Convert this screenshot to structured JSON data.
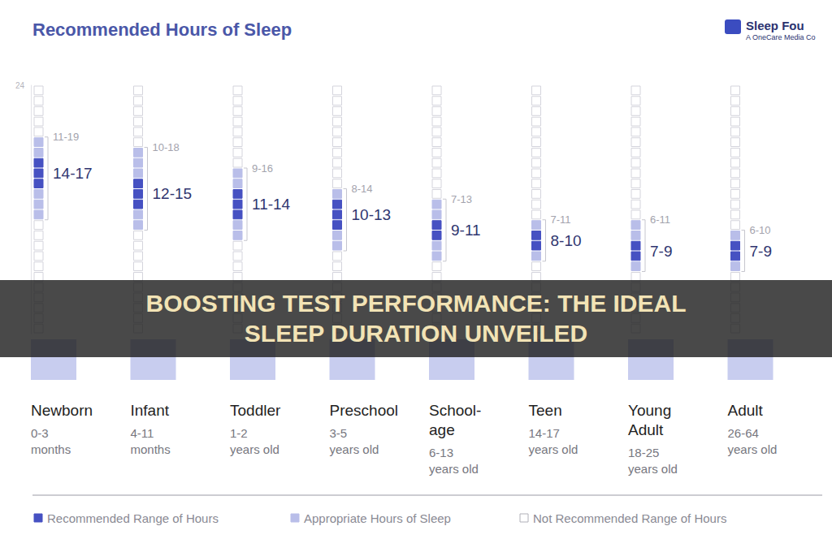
{
  "chart_data": {
    "type": "bar",
    "title": "Recommended Hours of Sleep",
    "categories": [
      "Newborn",
      "Infant",
      "Toddler",
      "Preschool",
      "School-age",
      "Teen",
      "Young Adult",
      "Adult"
    ],
    "category_ages": [
      "0-3 months",
      "4-11 months",
      "1-2 years old",
      "3-5 years old",
      "6-13 years old",
      "14-17 years old",
      "18-25 years old",
      "26-64 years old"
    ],
    "series": [
      {
        "name": "Recommended Range of Hours",
        "color": "#4651c2",
        "values": [
          [
            14,
            17
          ],
          [
            12,
            15
          ],
          [
            11,
            14
          ],
          [
            10,
            13
          ],
          [
            9,
            11
          ],
          [
            8,
            10
          ],
          [
            7,
            9
          ],
          [
            7,
            9
          ]
        ],
        "value_labels": [
          "14-17",
          "12-15",
          "11-14",
          "10-13",
          "9-11",
          "8-10",
          "7-9",
          "7-9"
        ]
      },
      {
        "name": "Appropriate Hours of Sleep",
        "color": "#b9bee9",
        "values": [
          [
            11,
            19
          ],
          [
            10,
            18
          ],
          [
            9,
            16
          ],
          [
            8,
            14
          ],
          [
            7,
            13
          ],
          [
            7,
            11
          ],
          [
            6,
            11
          ],
          [
            6,
            10
          ]
        ],
        "value_labels": [
          "11-19",
          "10-18",
          "9-16",
          "8-14",
          "7-13",
          "7-11",
          "6-11",
          "6-10"
        ]
      },
      {
        "name": "Not Recommended Range of Hours",
        "color": "#ffffff"
      }
    ],
    "ylim": [
      0,
      24
    ],
    "yticks": [
      24
    ],
    "legend": "bottom",
    "grid": false
  },
  "header": {
    "brand": "Sleep Fou",
    "tagline": "A OneCare Media Co"
  },
  "banner": {
    "text": "BOOSTING TEST PERFORMANCE: THE IDEAL SLEEP DURATION UNVEILED"
  }
}
